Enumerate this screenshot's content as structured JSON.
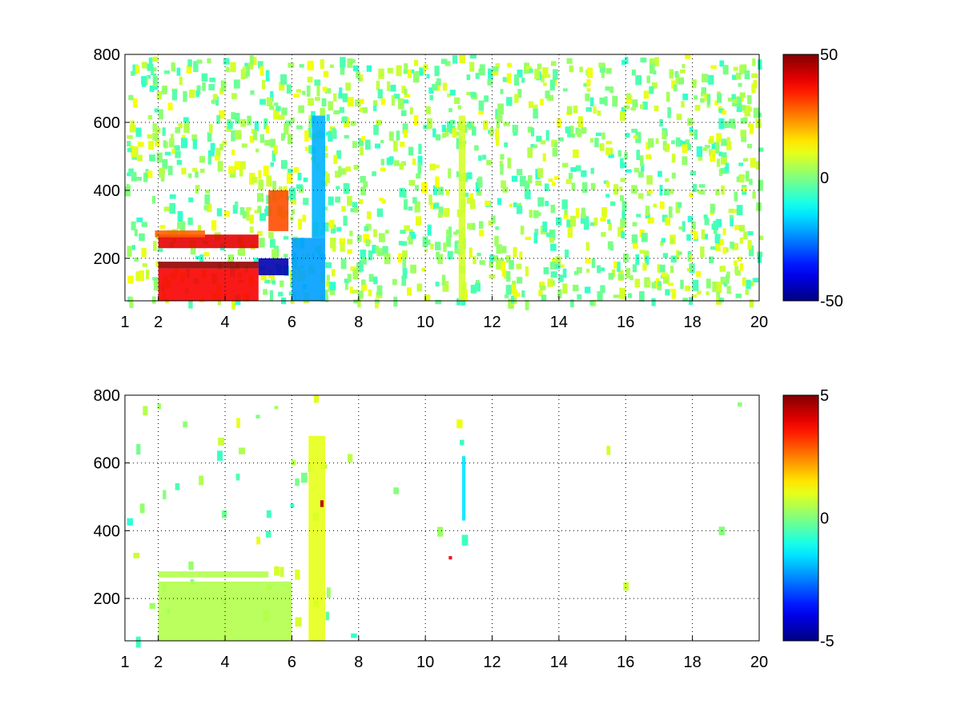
{
  "chart_data": [
    {
      "type": "heatmap",
      "title": "",
      "xlabel": "",
      "ylabel": "",
      "xlim": [
        1,
        20
      ],
      "ylim": [
        75,
        800
      ],
      "xticks": [
        1,
        2,
        4,
        6,
        8,
        10,
        12,
        14,
        16,
        18,
        20
      ],
      "yticks": [
        200,
        400,
        600,
        800
      ],
      "grid": true,
      "colormap": "jet",
      "colorbar": {
        "range": [
          -50,
          50
        ],
        "ticks": [
          50,
          0,
          -50
        ]
      },
      "features": [
        {
          "x": [
            2.0,
            5.0
          ],
          "y": [
            170,
            190
          ],
          "value": 48
        },
        {
          "x": [
            2.0,
            5.0
          ],
          "y": [
            230,
            270
          ],
          "value": 40
        },
        {
          "x": [
            1.9,
            3.4
          ],
          "y": [
            262,
            282
          ],
          "value": 28
        },
        {
          "x": [
            5.0,
            5.9
          ],
          "y": [
            150,
            200
          ],
          "value": -45
        },
        {
          "x": [
            6.0,
            7.0
          ],
          "y": [
            75,
            260
          ],
          "value": -22
        },
        {
          "x": [
            6.6,
            7.0
          ],
          "y": [
            260,
            620
          ],
          "value": -20
        },
        {
          "x": [
            5.3,
            5.9
          ],
          "y": [
            280,
            400
          ],
          "value": 30
        },
        {
          "x": [
            2.0,
            5.0
          ],
          "y": [
            75,
            170
          ],
          "value": 38
        },
        {
          "x": [
            11.0,
            11.2
          ],
          "y": [
            75,
            620
          ],
          "value": 8
        }
      ]
    },
    {
      "type": "heatmap",
      "title": "",
      "xlabel": "",
      "ylabel": "",
      "xlim": [
        1,
        20
      ],
      "ylim": [
        75,
        800
      ],
      "xticks": [
        1,
        2,
        4,
        6,
        8,
        10,
        12,
        14,
        16,
        18,
        20
      ],
      "yticks": [
        200,
        400,
        600,
        800
      ],
      "grid": true,
      "colormap": "jet",
      "colorbar": {
        "range": [
          -5,
          5
        ],
        "ticks": [
          5,
          0,
          -5
        ]
      },
      "features": [
        {
          "x": [
            2.0,
            6.0
          ],
          "y": [
            75,
            250
          ],
          "value": 0.5
        },
        {
          "x": [
            2.0,
            5.3
          ],
          "y": [
            262,
            280
          ],
          "value": 0.5
        },
        {
          "x": [
            6.5,
            7.0
          ],
          "y": [
            75,
            680
          ],
          "value": 1.0
        },
        {
          "x": [
            6.85,
            6.95
          ],
          "y": [
            470,
            490
          ],
          "value": 4.5
        },
        {
          "x": [
            11.1,
            11.2
          ],
          "y": [
            430,
            620
          ],
          "value": -1.5
        },
        {
          "x": [
            10.7,
            10.8
          ],
          "y": [
            315,
            325
          ],
          "value": 4.0
        }
      ]
    }
  ]
}
